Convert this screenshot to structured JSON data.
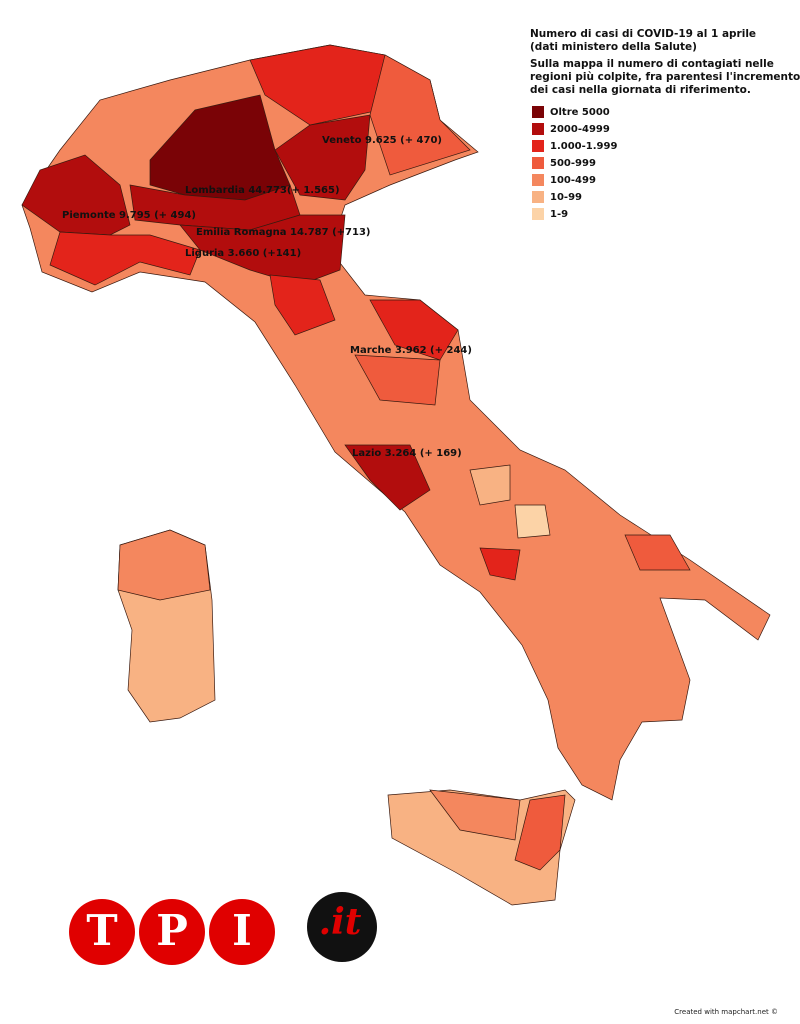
{
  "header": {
    "title": [
      "Numero di casi di COVID-19 al 1 aprile",
      "(dati ministero della Salute)"
    ],
    "subtitle": [
      "Sulla mappa il numero di contagiati nelle",
      "regioni più colpite, fra parentesi l'incremento",
      "dei casi nella giornata di riferimento."
    ]
  },
  "legend": {
    "items": [
      {
        "label": "Oltre 5000",
        "color": "#7a0306"
      },
      {
        "label": "2000-4999",
        "color": "#b20d0d"
      },
      {
        "label": "1.000-1.999",
        "color": "#e3241b"
      },
      {
        "label": "500-999",
        "color": "#ef5b3d"
      },
      {
        "label": "100-499",
        "color": "#f4875e"
      },
      {
        "label": "10-99",
        "color": "#f8b283"
      },
      {
        "label": "1-9",
        "color": "#fcd3a7"
      }
    ]
  },
  "labels": [
    "Veneto 9.625 (+ 470)",
    "Lombardia 44.773(+ 1.565)",
    "Piemonte 9.795 (+ 494)",
    "Emilia Romagna 14.787 (+713)",
    "Liguria 3.660 (+141)",
    "Marche 3.962 (+ 244)",
    "Lazio 3.264 (+ 169)"
  ],
  "logo": {
    "letters": [
      "T",
      "P",
      "I"
    ],
    "suffix": ".it"
  },
  "footer": "Created with mapchart.net ©"
}
